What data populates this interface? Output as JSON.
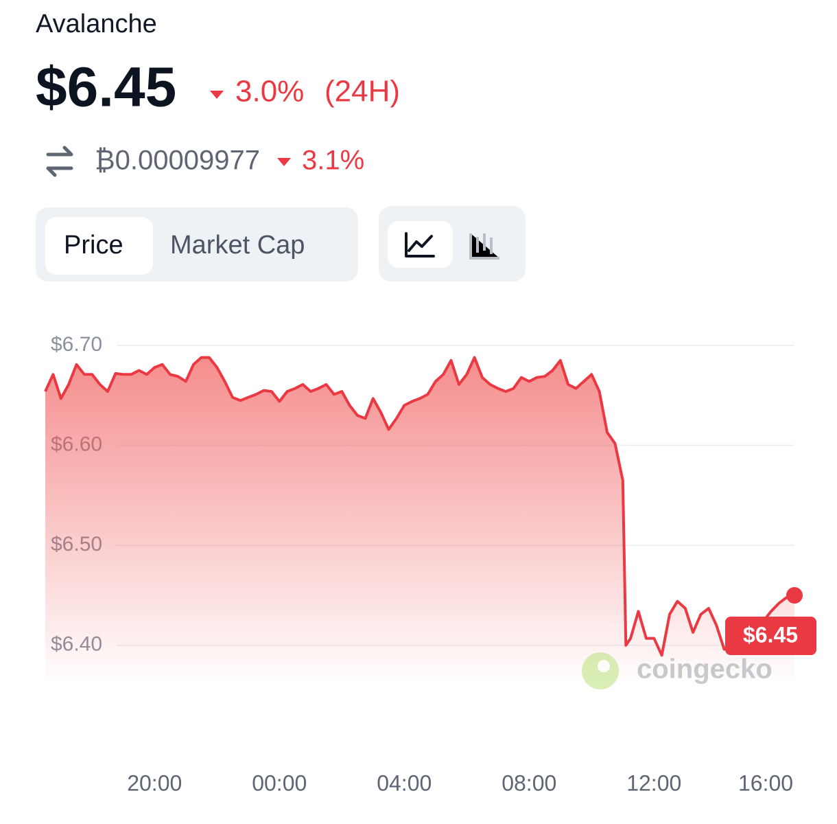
{
  "asset": "Avalanche",
  "price": "$6.45",
  "change_24h": "3.0%",
  "change_period": "(24H)",
  "btc_price": "₿0.00009977",
  "btc_change": "3.1%",
  "tabs": [
    "Price",
    "Market Cap"
  ],
  "watermark": "coingecko",
  "chart_data": {
    "type": "area",
    "color": "#ea3943",
    "x": [
      16.5,
      16.75,
      17,
      17.25,
      17.5,
      17.75,
      18,
      18.25,
      18.5,
      18.75,
      19,
      19.25,
      19.5,
      19.75,
      20,
      20.25,
      20.5,
      20.75,
      21,
      21.25,
      21.5,
      21.75,
      22,
      22.25,
      22.5,
      22.75,
      23,
      23.25,
      23.5,
      23.75,
      24,
      24.25,
      24.5,
      24.75,
      25,
      25.25,
      25.5,
      25.75,
      26,
      26.25,
      26.5,
      26.75,
      27,
      27.25,
      27.5,
      27.75,
      28,
      28.25,
      28.5,
      28.75,
      29,
      29.25,
      29.5,
      29.75,
      30,
      30.25,
      30.5,
      30.75,
      31,
      31.25,
      31.5,
      31.75,
      32,
      32.25,
      32.5,
      32.75,
      33,
      33.25,
      33.5,
      33.75,
      34,
      34.25,
      34.5,
      34.75,
      35,
      35.1,
      35.25,
      35.5,
      35.75,
      36,
      36.25,
      36.5,
      36.75,
      37,
      37.25,
      37.5,
      37.75,
      38,
      38.25,
      38.5,
      38.75,
      39,
      39.25,
      39.5,
      39.75,
      40,
      40.25,
      40.5
    ],
    "values": [
      6.654,
      6.671,
      6.647,
      6.661,
      6.681,
      6.671,
      6.671,
      6.661,
      6.654,
      6.672,
      6.671,
      6.671,
      6.675,
      6.671,
      6.678,
      6.681,
      6.671,
      6.669,
      6.664,
      6.681,
      6.688,
      6.688,
      6.678,
      6.664,
      6.648,
      6.645,
      6.648,
      6.651,
      6.655,
      6.654,
      6.644,
      6.654,
      6.657,
      6.661,
      6.654,
      6.657,
      6.661,
      6.651,
      6.654,
      6.64,
      6.63,
      6.627,
      6.647,
      6.633,
      6.616,
      6.627,
      6.64,
      6.644,
      6.647,
      6.651,
      6.664,
      6.671,
      6.685,
      6.661,
      6.671,
      6.688,
      6.668,
      6.661,
      6.657,
      6.654,
      6.657,
      6.668,
      6.664,
      6.668,
      6.669,
      6.675,
      6.685,
      6.661,
      6.657,
      6.664,
      6.671,
      6.654,
      6.613,
      6.602,
      6.565,
      6.4,
      6.407,
      6.434,
      6.407,
      6.407,
      6.39,
      6.431,
      6.444,
      6.437,
      6.413,
      6.431,
      6.437,
      6.42,
      6.396,
      6.403,
      6.403,
      6.403,
      6.403,
      6.424,
      6.434,
      6.442,
      6.448,
      6.45
    ],
    "xlim": [
      16.5,
      40.5
    ],
    "xticks": [
      {
        "value": 20,
        "label": "20:00"
      },
      {
        "value": 24,
        "label": "00:00"
      },
      {
        "value": 28,
        "label": "04:00"
      },
      {
        "value": 32,
        "label": "08:00"
      },
      {
        "value": 36,
        "label": "12:00"
      },
      {
        "value": 40,
        "label": "16:00"
      }
    ],
    "ylim": [
      6.36,
      6.72
    ],
    "yticks": [
      {
        "value": 6.4,
        "label": "$6.40"
      },
      {
        "value": 6.5,
        "label": "$6.50"
      },
      {
        "value": 6.6,
        "label": "$6.60"
      },
      {
        "value": 6.7,
        "label": "$6.70"
      }
    ],
    "grid": true
  }
}
